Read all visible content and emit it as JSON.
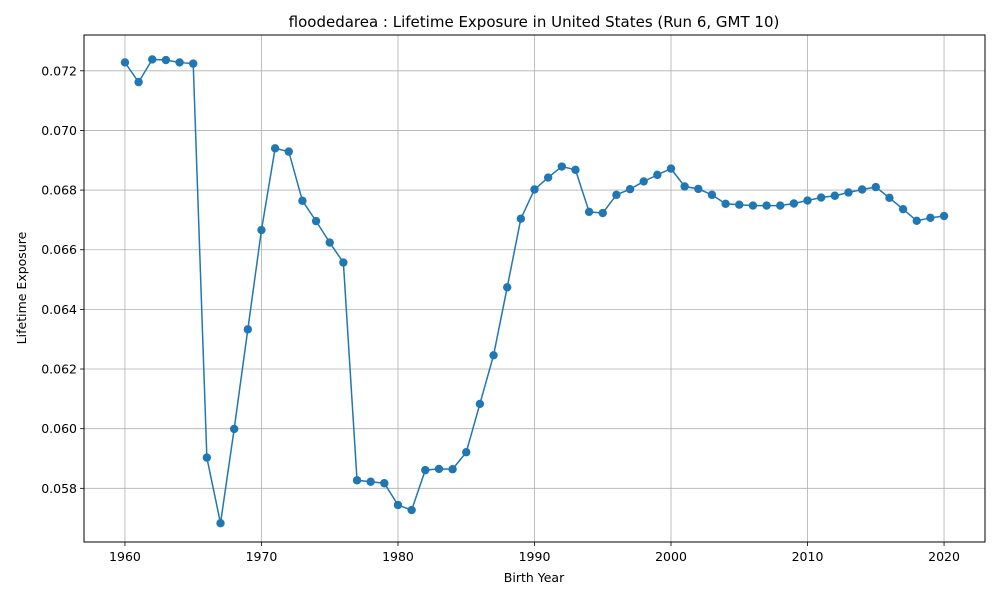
{
  "chart_data": {
    "type": "line",
    "title": "floodedarea : Lifetime Exposure in United States (Run 6, GMT 10)",
    "xlabel": "Birth Year",
    "ylabel": "Lifetime Exposure",
    "xlim": [
      1957,
      2023
    ],
    "ylim": [
      0.0562,
      0.0732
    ],
    "xticks": [
      1960,
      1970,
      1980,
      1990,
      2000,
      2010,
      2020
    ],
    "yticks": [
      0.058,
      0.06,
      0.062,
      0.064,
      0.066,
      0.068,
      0.07,
      0.072
    ],
    "ytick_labels": [
      "0.058",
      "0.060",
      "0.062",
      "0.064",
      "0.066",
      "0.068",
      "0.070",
      "0.072"
    ],
    "grid": true,
    "marker": "circle",
    "color": "#1f77b4",
    "x": [
      1960,
      1961,
      1962,
      1963,
      1964,
      1965,
      1966,
      1967,
      1968,
      1969,
      1970,
      1971,
      1972,
      1973,
      1974,
      1975,
      1976,
      1977,
      1978,
      1979,
      1980,
      1981,
      1982,
      1983,
      1984,
      1985,
      1986,
      1987,
      1988,
      1989,
      1990,
      1991,
      1992,
      1993,
      1994,
      1995,
      1996,
      1997,
      1998,
      1999,
      2000,
      2001,
      2002,
      2003,
      2004,
      2005,
      2006,
      2007,
      2008,
      2009,
      2010,
      2011,
      2012,
      2013,
      2014,
      2015,
      2016,
      2017,
      2018,
      2019,
      2020
    ],
    "y": [
      0.07228,
      0.07162,
      0.07238,
      0.07236,
      0.07228,
      0.07224,
      0.05903,
      0.05683,
      0.05999,
      0.06333,
      0.06666,
      0.0694,
      0.06929,
      0.06764,
      0.06696,
      0.06624,
      0.06557,
      0.05827,
      0.05822,
      0.05817,
      0.05744,
      0.05727,
      0.05861,
      0.05865,
      0.05864,
      0.05921,
      0.06083,
      0.06246,
      0.06474,
      0.06704,
      0.06802,
      0.06842,
      0.06879,
      0.06868,
      0.06727,
      0.06723,
      0.06784,
      0.06803,
      0.06829,
      0.06851,
      0.06872,
      0.06812,
      0.06804,
      0.06784,
      0.06754,
      0.06751,
      0.06748,
      0.06748,
      0.06748,
      0.06755,
      0.06765,
      0.06775,
      0.06781,
      0.06792,
      0.06802,
      0.0681,
      0.06774,
      0.06736,
      0.06697,
      0.06707,
      0.06713
    ]
  }
}
